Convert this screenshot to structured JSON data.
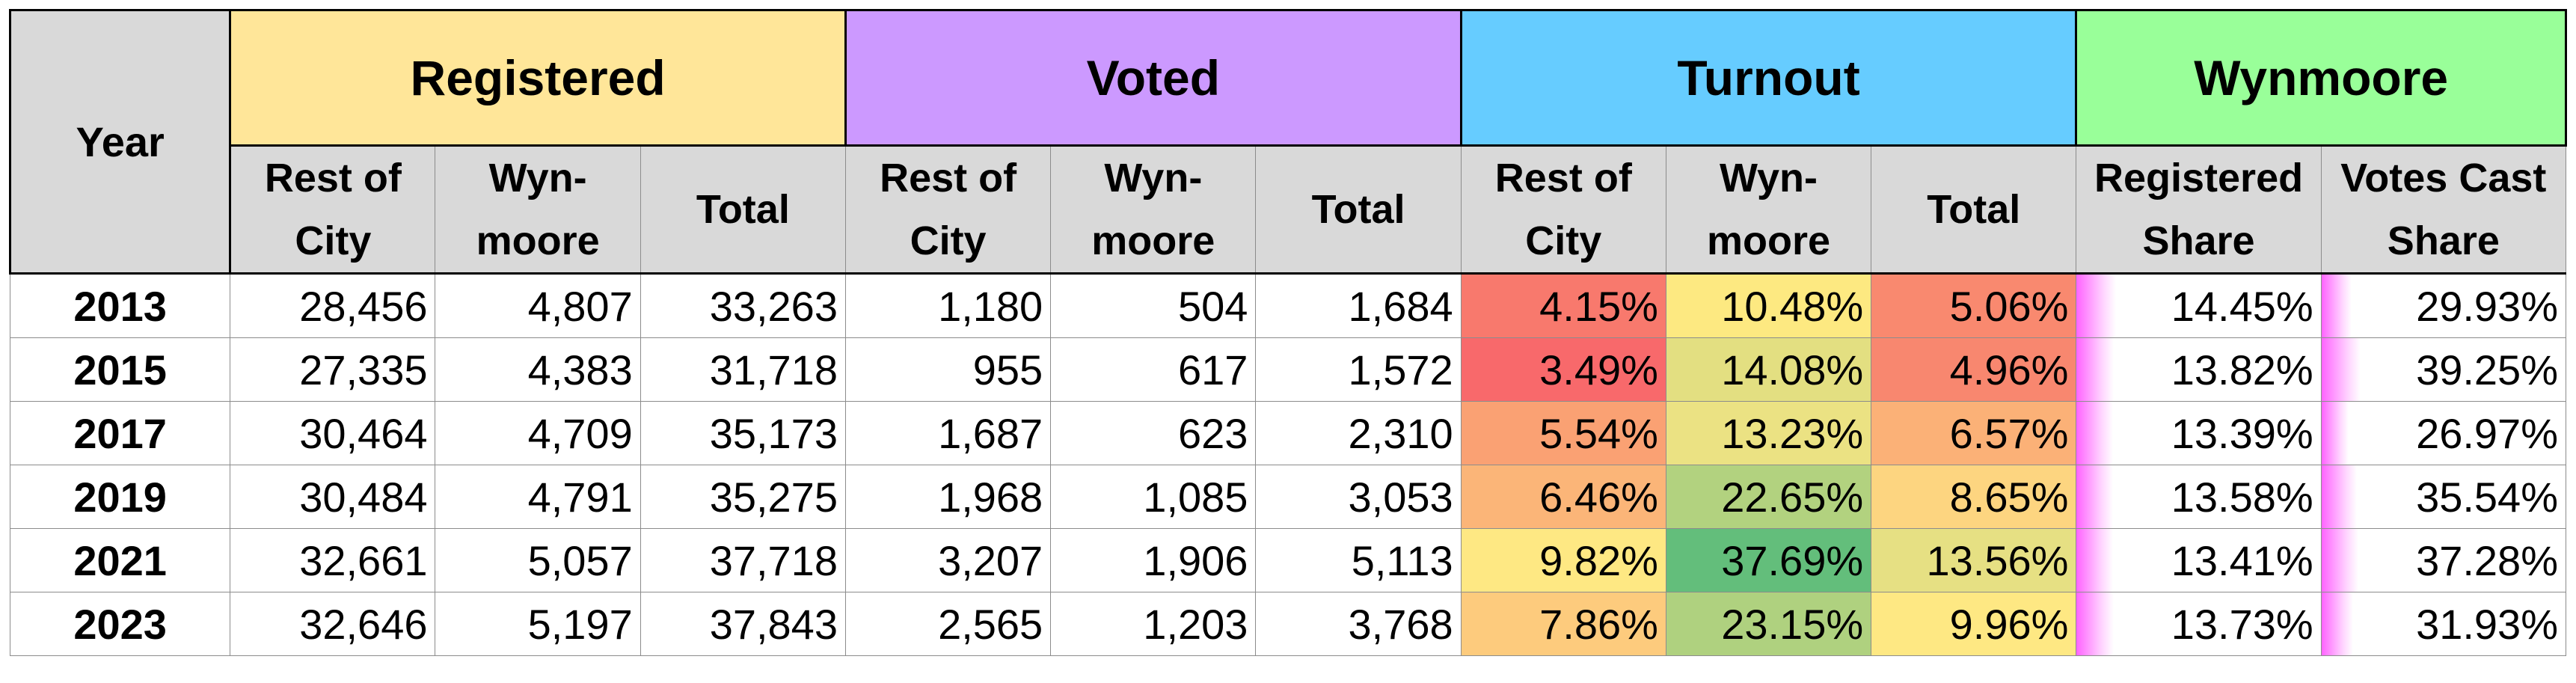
{
  "header": {
    "year_label": "Year",
    "groups": [
      {
        "label": "Registered",
        "color": "#ffe699"
      },
      {
        "label": "Voted",
        "color": "#cc99ff"
      },
      {
        "label": "Turnout",
        "color": "#66ccff"
      },
      {
        "label": "Wynmoore",
        "color": "#99ff99"
      }
    ],
    "subheaders": {
      "rest_of_city": "Rest of City",
      "wynmoore": "Wyn-moore",
      "total": "Total",
      "registered_share": "Registered Share",
      "votes_cast_share": "Votes Cast Share"
    }
  },
  "bar_color": "#ff63ff",
  "rows": [
    {
      "year": "2013",
      "registered": {
        "rest": "28,456",
        "wyn": "4,807",
        "total": "33,263"
      },
      "voted": {
        "rest": "1,180",
        "wyn": "504",
        "total": "1,684"
      },
      "turnout": {
        "rest": "4.15%",
        "wyn": "10.48%",
        "total": "5.06%"
      },
      "turnout_colors": {
        "rest": "#f8796d",
        "wyn": "#fde981",
        "total": "#f9896f"
      },
      "registered_share": "14.45%",
      "registered_share_value": 0.1445,
      "votes_cast_share": "29.93%",
      "votes_cast_share_value": 0.2993
    },
    {
      "year": "2015",
      "registered": {
        "rest": "27,335",
        "wyn": "4,383",
        "total": "31,718"
      },
      "voted": {
        "rest": "955",
        "wyn": "617",
        "total": "1,572"
      },
      "turnout": {
        "rest": "3.49%",
        "wyn": "14.08%",
        "total": "4.96%"
      },
      "turnout_colors": {
        "rest": "#f8696b",
        "wyn": "#e3df81",
        "total": "#f8876f"
      },
      "registered_share": "13.82%",
      "registered_share_value": 0.1382,
      "votes_cast_share": "39.25%",
      "votes_cast_share_value": 0.3925
    },
    {
      "year": "2017",
      "registered": {
        "rest": "30,464",
        "wyn": "4,709",
        "total": "35,173"
      },
      "voted": {
        "rest": "1,687",
        "wyn": "623",
        "total": "2,310"
      },
      "turnout": {
        "rest": "5.54%",
        "wyn": "13.23%",
        "total": "6.57%"
      },
      "turnout_colors": {
        "rest": "#faa173",
        "wyn": "#ebe283",
        "total": "#fbb177"
      },
      "registered_share": "13.39%",
      "registered_share_value": 0.1339,
      "votes_cast_share": "26.97%",
      "votes_cast_share_value": 0.2697
    },
    {
      "year": "2019",
      "registered": {
        "rest": "30,484",
        "wyn": "4,791",
        "total": "35,275"
      },
      "voted": {
        "rest": "1,968",
        "wyn": "1,085",
        "total": "3,053"
      },
      "turnout": {
        "rest": "6.46%",
        "wyn": "22.65%",
        "total": "8.65%"
      },
      "turnout_colors": {
        "rest": "#fbb578",
        "wyn": "#b2d27f",
        "total": "#fdd580"
      },
      "registered_share": "13.58%",
      "registered_share_value": 0.1358,
      "votes_cast_share": "35.54%",
      "votes_cast_share_value": 0.3554
    },
    {
      "year": "2021",
      "registered": {
        "rest": "32,661",
        "wyn": "5,057",
        "total": "37,718"
      },
      "voted": {
        "rest": "3,207",
        "wyn": "1,906",
        "total": "5,113"
      },
      "turnout": {
        "rest": "9.82%",
        "wyn": "37.69%",
        "total": "13.56%"
      },
      "turnout_colors": {
        "rest": "#fee883",
        "wyn": "#63be7b",
        "total": "#e6e083"
      },
      "registered_share": "13.41%",
      "registered_share_value": 0.1341,
      "votes_cast_share": "37.28%",
      "votes_cast_share_value": 0.3728
    },
    {
      "year": "2023",
      "registered": {
        "rest": "32,646",
        "wyn": "5,197",
        "total": "37,843"
      },
      "voted": {
        "rest": "2,565",
        "wyn": "1,203",
        "total": "3,768"
      },
      "turnout": {
        "rest": "7.86%",
        "wyn": "23.15%",
        "total": "9.96%"
      },
      "turnout_colors": {
        "rest": "#fdcb7d",
        "wyn": "#afd17f",
        "total": "#fee883"
      },
      "registered_share": "13.73%",
      "registered_share_value": 0.1373,
      "votes_cast_share": "31.93%",
      "votes_cast_share_value": 0.3193
    }
  ]
}
